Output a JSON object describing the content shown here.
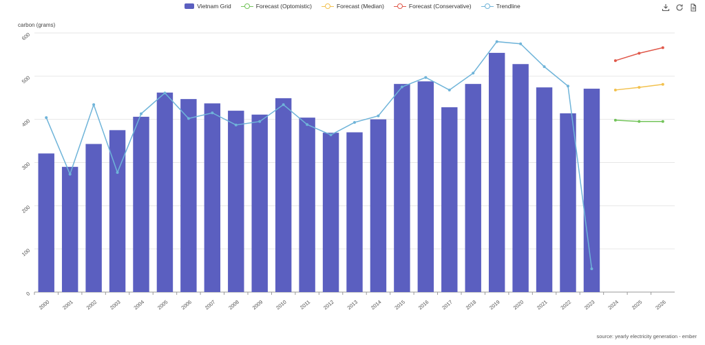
{
  "chart_data": {
    "type": "bar",
    "categories": [
      "2000",
      "2001",
      "2002",
      "2003",
      "2004",
      "2005",
      "2006",
      "2007",
      "2008",
      "2009",
      "2010",
      "2011",
      "2012",
      "2013",
      "2014",
      "2015",
      "2016",
      "2017",
      "2018",
      "2019",
      "2020",
      "2021",
      "2022",
      "2023",
      "2024",
      "2025",
      "2026"
    ],
    "ylabel": "carbon (grams)",
    "ylim": [
      0,
      600
    ],
    "yticks": [
      "0",
      "100",
      "200",
      "300",
      "400",
      "500",
      "600"
    ],
    "grid": true,
    "legend_position": "top-center",
    "series": [
      {
        "name": "Vietnam Grid",
        "type": "bar",
        "color": "#5b5fc0",
        "values": [
          321,
          290,
          343,
          375,
          406,
          462,
          447,
          437,
          420,
          411,
          449,
          404,
          369,
          370,
          400,
          482,
          488,
          428,
          482,
          554,
          528,
          474,
          414,
          471,
          null,
          null,
          null
        ]
      },
      {
        "name": "Forecast (Optomistic)",
        "type": "line",
        "color": "#73c45a",
        "values": [
          null,
          null,
          null,
          null,
          null,
          null,
          null,
          null,
          null,
          null,
          null,
          null,
          null,
          null,
          null,
          null,
          null,
          null,
          null,
          null,
          null,
          null,
          null,
          null,
          398,
          395,
          395
        ]
      },
      {
        "name": "Forecast (Median)",
        "type": "line",
        "color": "#f2c14e",
        "values": [
          null,
          null,
          null,
          null,
          null,
          null,
          null,
          null,
          null,
          null,
          null,
          null,
          null,
          null,
          null,
          null,
          null,
          null,
          null,
          null,
          null,
          null,
          null,
          null,
          468,
          474,
          481
        ]
      },
      {
        "name": "Forecast (Conservative)",
        "type": "line",
        "color": "#e0584a",
        "values": [
          null,
          null,
          null,
          null,
          null,
          null,
          null,
          null,
          null,
          null,
          null,
          null,
          null,
          null,
          null,
          null,
          null,
          null,
          null,
          null,
          null,
          null,
          null,
          null,
          536,
          553,
          566
        ]
      },
      {
        "name": "Trendline",
        "type": "line",
        "color": "#6fb4d9",
        "values": [
          404,
          273,
          434,
          277,
          413,
          461,
          402,
          415,
          387,
          395,
          434,
          388,
          364,
          393,
          408,
          475,
          497,
          468,
          507,
          580,
          575,
          522,
          477,
          54,
          null,
          null,
          null
        ]
      }
    ],
    "source": "source: yearly electricity generation - ember"
  },
  "toolbar": {
    "icons": [
      "download-icon",
      "refresh-icon",
      "document-icon"
    ]
  }
}
